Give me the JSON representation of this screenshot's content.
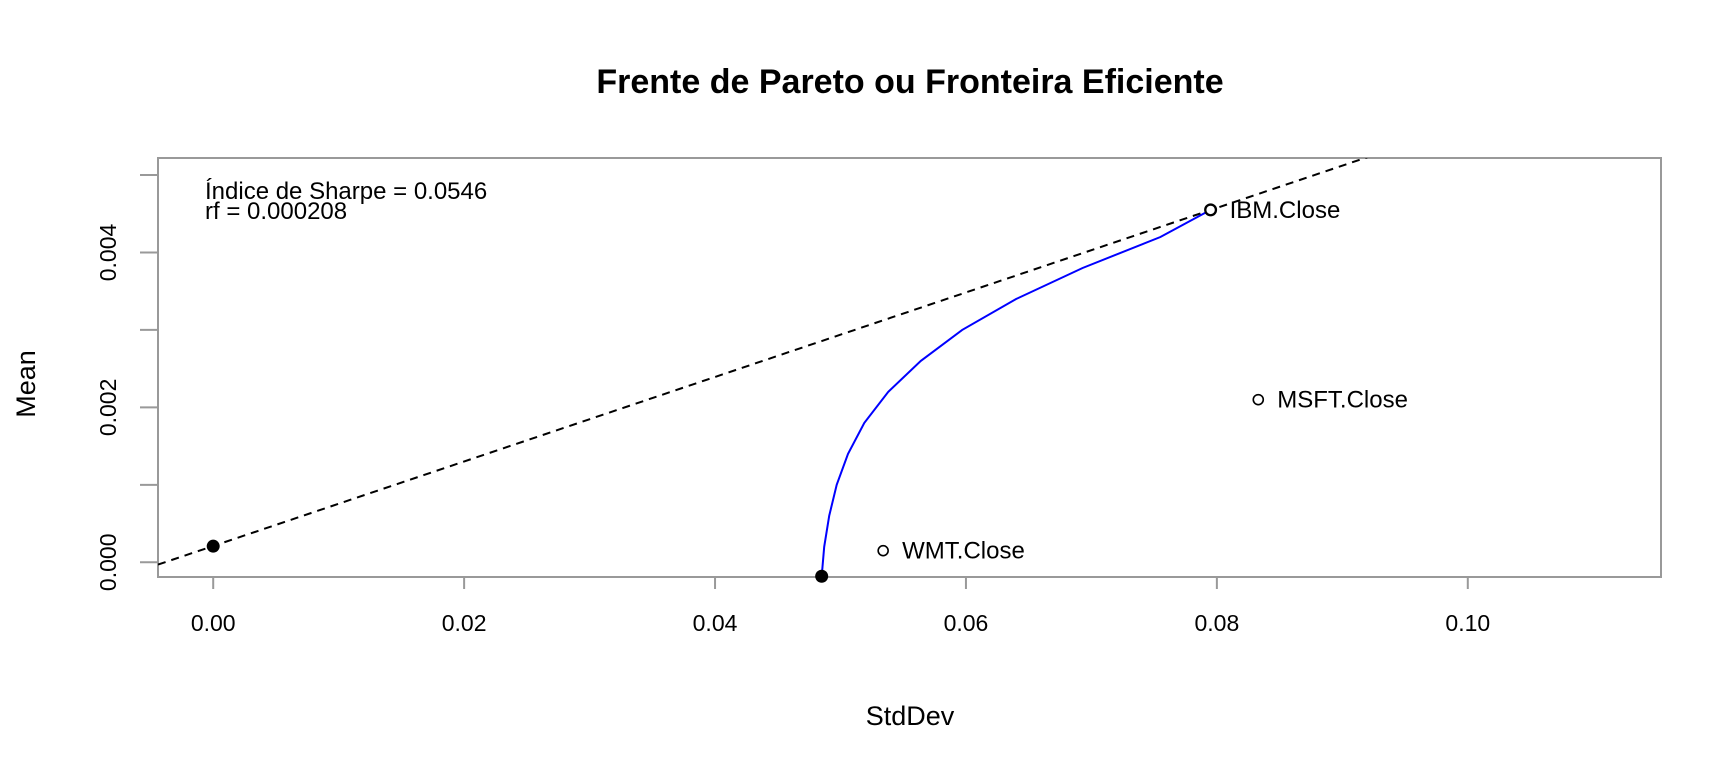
{
  "chart_data": {
    "type": "scatter",
    "title": "Frente de Pareto ou Fronteira Eficiente",
    "xlabel": "StdDev",
    "ylabel": "Mean",
    "xlim": [
      -0.0044,
      0.1154
    ],
    "ylim": [
      -0.00019,
      0.00522
    ],
    "x_ticks": [
      "0.00",
      "0.02",
      "0.04",
      "0.06",
      "0.08",
      "0.10"
    ],
    "y_ticks": [
      "0.000",
      "0.002",
      "0.004"
    ],
    "annotations": [
      "Índice de Sharpe = 0.0546",
      "rf = 0.000208"
    ],
    "series": [
      {
        "kind": "frontier",
        "color": "#0000ff",
        "points": [
          [
            0.0485,
            -0.00018
          ],
          [
            0.0487,
            0.0002
          ],
          [
            0.0491,
            0.0006
          ],
          [
            0.0497,
            0.001
          ],
          [
            0.0506,
            0.0014
          ],
          [
            0.0519,
            0.0018
          ],
          [
            0.0538,
            0.0022
          ],
          [
            0.0564,
            0.0026
          ],
          [
            0.0597,
            0.003
          ],
          [
            0.064,
            0.0034
          ],
          [
            0.0693,
            0.0038
          ],
          [
            0.0755,
            0.0042
          ],
          [
            0.0795,
            0.00455
          ]
        ]
      },
      {
        "kind": "capital-market-line",
        "line_style": "dashed",
        "color": "#000000",
        "points": [
          [
            -0.0044,
            -3e-05
          ],
          [
            0.092,
            0.00523
          ]
        ]
      }
    ],
    "highlighted_points": [
      {
        "x": 0.0,
        "y": 0.000208
      },
      {
        "x": 0.0485,
        "y": -0.00018
      },
      {
        "x": 0.0795,
        "y": 0.00455
      }
    ],
    "assets": [
      {
        "label": "IBM.Close",
        "x": 0.0795,
        "y": 0.00455
      },
      {
        "label": "MSFT.Close",
        "x": 0.0833,
        "y": 0.0021
      },
      {
        "label": "WMT.Close",
        "x": 0.0534,
        "y": 0.00015
      }
    ]
  }
}
